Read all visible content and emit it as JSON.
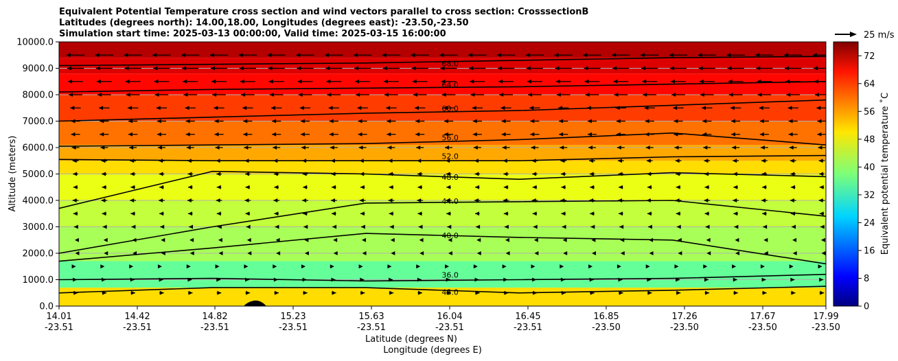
{
  "chart_data": {
    "type": "heatmap",
    "title_lines": [
      "Equivalent Potential Temperature cross section and wind vectors parallel to cross section: CrosssectionB",
      "Latitudes (degrees north): 14.00,18.00, Longitudes (degrees east): -23.50,-23.50",
      "Simulation start time: 2025-03-13 00:00:00, Valid time: 2025-03-15 16:00:00"
    ],
    "xlabel_lat": "Latitude (degrees N)",
    "xlabel_lon": "Longitude (degrees E)",
    "ylabel": "Altitude (meters)",
    "ylim": [
      0,
      10000
    ],
    "y_ticks": [
      "0.0",
      "1000.0",
      "2000.0",
      "3000.0",
      "4000.0",
      "5000.0",
      "6000.0",
      "7000.0",
      "8000.0",
      "9000.0",
      "10000.0"
    ],
    "x_tick_lat": [
      "14.01",
      "14.42",
      "14.82",
      "15.23",
      "15.63",
      "16.04",
      "16.45",
      "16.85",
      "17.26",
      "17.67",
      "17.99"
    ],
    "x_tick_lon": [
      "-23.51",
      "-23.51",
      "-23.51",
      "-23.51",
      "-23.51",
      "-23.51",
      "-23.51",
      "-23.50",
      "-23.50",
      "-23.50",
      "-23.50"
    ],
    "grid": "horizontal",
    "colorbar": {
      "label": "Equivalent potential temperature ˚C",
      "range": [
        0,
        76
      ],
      "ticks": [
        "0",
        "8",
        "16",
        "24",
        "32",
        "40",
        "48",
        "56",
        "64",
        "72"
      ],
      "colormap": "jet"
    },
    "wind_key_label": "25 m/s",
    "contours": [
      {
        "level": "68.0",
        "label_pos": [
          0.51,
          0.91
        ],
        "y": [
          9100,
          9150,
          9200,
          9300,
          9400,
          9450
        ]
      },
      {
        "level": "64.0",
        "label_pos": [
          0.51,
          0.83
        ],
        "y": [
          8100,
          8200,
          8250,
          8300,
          8400,
          8500
        ]
      },
      {
        "level": "60.0",
        "label_pos": [
          0.51,
          0.74
        ],
        "y": [
          7000,
          7150,
          7300,
          7400,
          7600,
          7800
        ]
      },
      {
        "level": "56.0",
        "label_pos": [
          0.51,
          0.63
        ],
        "y": [
          6050,
          6100,
          6150,
          6300,
          6550,
          6100
        ]
      },
      {
        "level": "52.0",
        "label_pos": [
          0.51,
          0.56
        ],
        "y": [
          5550,
          5500,
          5500,
          5500,
          5650,
          5700
        ]
      },
      {
        "level": "48.0",
        "label_pos": [
          0.51,
          0.48
        ],
        "y": [
          3700,
          5100,
          5000,
          4800,
          5050,
          4900
        ]
      },
      {
        "level": "44.0",
        "label_pos": [
          0.51,
          0.39
        ],
        "y": [
          2000,
          3000,
          3900,
          3950,
          4000,
          3400
        ]
      },
      {
        "level": "40.0",
        "label_pos": [
          0.51,
          0.26
        ],
        "y": [
          1700,
          2200,
          2750,
          2600,
          2500,
          1600
        ]
      },
      {
        "level": "36.0",
        "label_pos": [
          0.51,
          0.11
        ],
        "y": [
          1000,
          1050,
          950,
          1000,
          1050,
          1200
        ]
      },
      {
        "level": "48.0",
        "label_pos": [
          0.51,
          0.045
        ],
        "y": [
          500,
          700,
          700,
          500,
          600,
          750
        ]
      }
    ],
    "field_bands": [
      {
        "y0": 0,
        "y1": 700,
        "value": 50
      },
      {
        "y0": 700,
        "y1": 1700,
        "value": 36
      },
      {
        "y0": 1700,
        "y1": 3000,
        "value": 41
      },
      {
        "y0": 3000,
        "y1": 4000,
        "value": 43
      },
      {
        "y0": 4000,
        "y1": 5000,
        "value": 46
      },
      {
        "y0": 5000,
        "y1": 5500,
        "value": 50
      },
      {
        "y0": 5500,
        "y1": 6100,
        "value": 54
      },
      {
        "y0": 6100,
        "y1": 7000,
        "value": 58
      },
      {
        "y0": 7000,
        "y1": 8000,
        "value": 62
      },
      {
        "y0": 8000,
        "y1": 8800,
        "value": 66
      },
      {
        "y0": 8800,
        "y1": 9400,
        "value": 69
      },
      {
        "y0": 9400,
        "y1": 10000,
        "value": 72
      }
    ],
    "wind_rows": [
      {
        "alt": 9500,
        "u": -12
      },
      {
        "alt": 9000,
        "u": -11
      },
      {
        "alt": 8500,
        "u": -10
      },
      {
        "alt": 8000,
        "u": -9
      },
      {
        "alt": 7500,
        "u": -7
      },
      {
        "alt": 7000,
        "u": -6
      },
      {
        "alt": 6500,
        "u": -6
      },
      {
        "alt": 6000,
        "u": -5
      },
      {
        "alt": 5500,
        "u": -4
      },
      {
        "alt": 5000,
        "u": -3.5
      },
      {
        "alt": 4500,
        "u": -3
      },
      {
        "alt": 4000,
        "u": -4
      },
      {
        "alt": 3500,
        "u": -3
      },
      {
        "alt": 3000,
        "u": -2
      },
      {
        "alt": 2500,
        "u": -1
      },
      {
        "alt": 2000,
        "u": -0.5
      },
      {
        "alt": 1500,
        "u": 0.5
      },
      {
        "alt": 1000,
        "u": 2
      },
      {
        "alt": 500,
        "u": 3
      }
    ]
  }
}
